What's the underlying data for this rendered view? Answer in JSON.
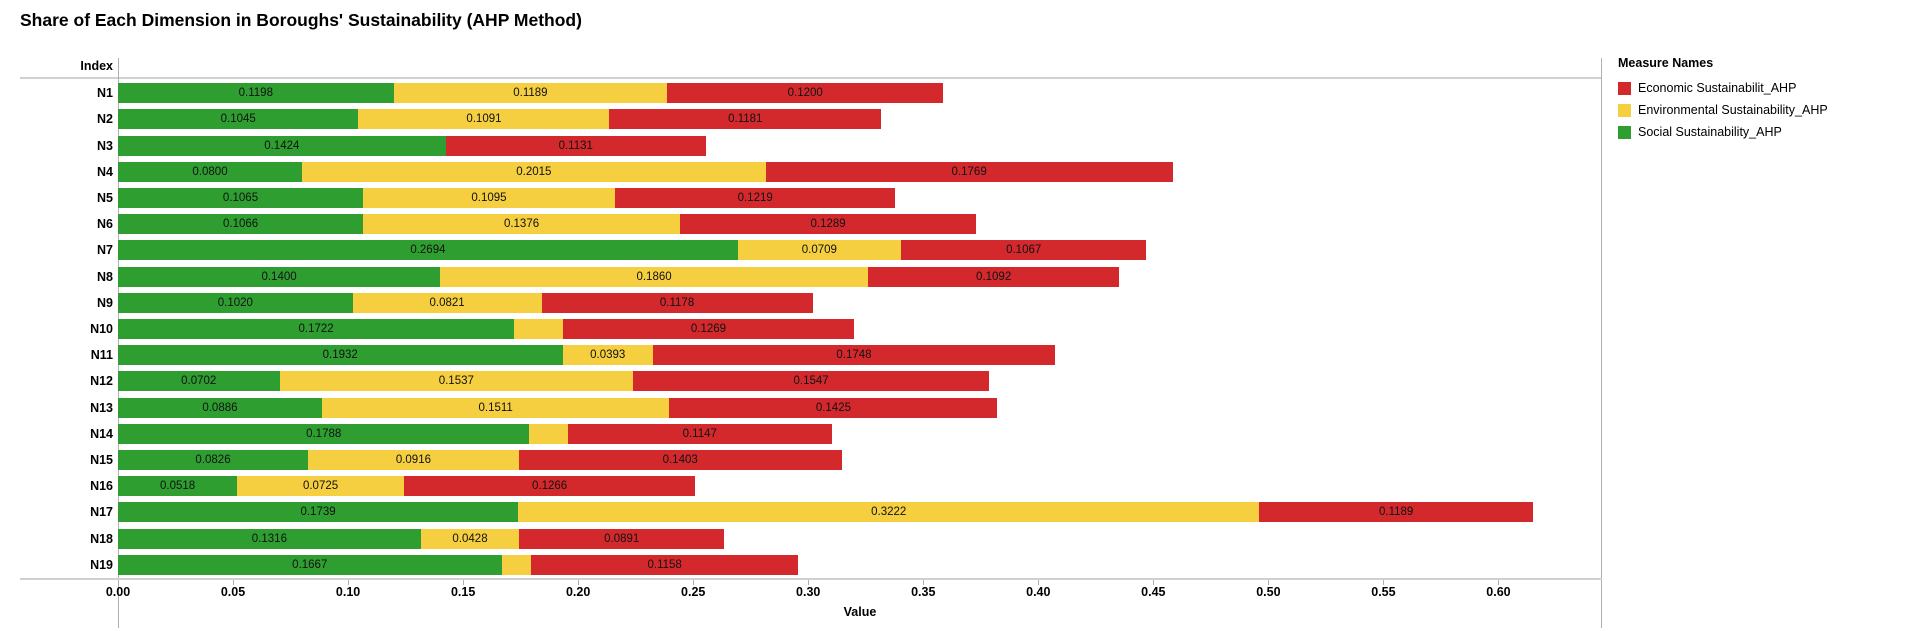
{
  "title": "Share of Each Dimension in Boroughs' Sustainability (AHP Method)",
  "row_header": "Index",
  "axis": {
    "label": "Value"
  },
  "legend": {
    "title": "Measure Names",
    "items": [
      {
        "label": "Economic Sustainabilit_AHP",
        "color": "#d3292d"
      },
      {
        "label": "Environmental Sustainability_AHP",
        "color": "#f6cf40"
      },
      {
        "label": "Social Sustainability_AHP",
        "color": "#2f9e31"
      }
    ]
  },
  "chart_data": {
    "type": "bar",
    "stacked": true,
    "orientation": "horizontal",
    "title": "Share of Each Dimension in Boroughs' Sustainability (AHP Method)",
    "xlabel": "Value",
    "ylabel": "Index",
    "xlim": [
      0,
      0.645
    ],
    "xticks": [
      0.0,
      0.05,
      0.1,
      0.15,
      0.2,
      0.25,
      0.3,
      0.35,
      0.4,
      0.45,
      0.5,
      0.55,
      0.6
    ],
    "grid": false,
    "legend_position": "right",
    "categories": [
      "N1",
      "N2",
      "N3",
      "N4",
      "N5",
      "N6",
      "N7",
      "N8",
      "N9",
      "N10",
      "N11",
      "N12",
      "N13",
      "N14",
      "N15",
      "N16",
      "N17",
      "N18",
      "N19"
    ],
    "series": [
      {
        "name": "Social Sustainability_AHP",
        "color": "#2f9e31",
        "values": [
          0.1198,
          0.1045,
          0.1424,
          0.08,
          0.1065,
          0.1066,
          0.2694,
          0.14,
          0.102,
          0.1722,
          0.1932,
          0.0702,
          0.0886,
          0.1788,
          0.0826,
          0.0518,
          0.1739,
          0.1316,
          0.1667
        ],
        "labels": [
          "0.1198",
          "0.1045",
          "0.1424",
          "0.0800",
          "0.1065",
          "0.1066",
          "0.2694",
          "0.1400",
          "0.1020",
          "0.1722",
          "0.1932",
          "0.0702",
          "0.0886",
          "0.1788",
          "0.0826",
          "0.0518",
          "0.1739",
          "0.1316",
          "0.1667"
        ]
      },
      {
        "name": "Environmental Sustainability_AHP",
        "color": "#f6cf40",
        "values": [
          0.1189,
          0.1091,
          0,
          0.2015,
          0.1095,
          0.1376,
          0.0709,
          0.186,
          0.0821,
          0.021,
          0.0393,
          0.1537,
          0.1511,
          0.0167,
          0.0916,
          0.0725,
          0.3222,
          0.0428,
          0.013
        ],
        "labels": [
          "0.1189",
          "0.1091",
          "",
          "0.2015",
          "0.1095",
          "0.1376",
          "0.0709",
          "0.1860",
          "0.0821",
          "",
          "0.0393",
          "0.1537",
          "0.1511",
          "",
          "0.0916",
          "0.0725",
          "0.3222",
          "0.0428",
          ""
        ]
      },
      {
        "name": "Economic Sustainabilit_AHP",
        "color": "#d3292d",
        "values": [
          0.12,
          0.1181,
          0.1131,
          0.1769,
          0.1219,
          0.1289,
          0.1067,
          0.1092,
          0.1178,
          0.1269,
          0.1748,
          0.1547,
          0.1425,
          0.1147,
          0.1403,
          0.1266,
          0.1189,
          0.0891,
          0.1158
        ],
        "labels": [
          "0.1200",
          "0.1181",
          "0.1131",
          "0.1769",
          "0.1219",
          "0.1289",
          "0.1067",
          "0.1092",
          "0.1178",
          "0.1269",
          "0.1748",
          "0.1547",
          "0.1425",
          "0.1147",
          "0.1403",
          "0.1266",
          "0.1189",
          "0.0891",
          "0.1158"
        ]
      }
    ]
  }
}
